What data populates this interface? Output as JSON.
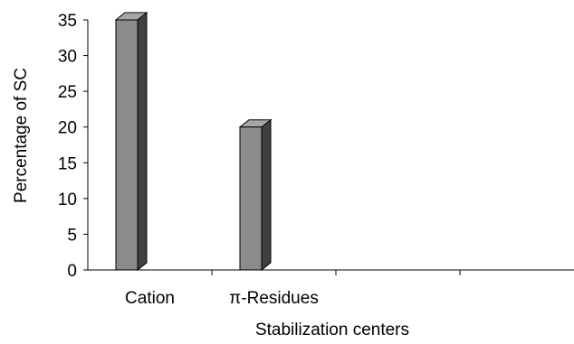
{
  "chart_data": {
    "type": "bar",
    "categories": [
      "Cation",
      "π-Residues",
      "",
      ""
    ],
    "values": [
      35,
      20,
      null,
      null
    ],
    "title": "",
    "xlabel": "Stabilization centers",
    "ylabel": "Percentage of SC",
    "ylim": [
      0,
      35
    ],
    "yticks": [
      0,
      5,
      10,
      15,
      20,
      25,
      30,
      35
    ],
    "grid": false,
    "style": "3d-column",
    "colors": {
      "bar_front": "#8c8c8c",
      "bar_top": "#a6a6a6",
      "bar_side": "#404040",
      "outline": "#000000"
    }
  }
}
